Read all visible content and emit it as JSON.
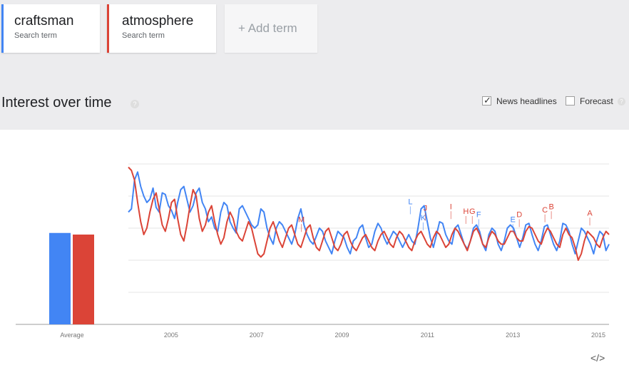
{
  "terms": [
    {
      "name": "craftsman",
      "sub": "Search term",
      "color": "#4285f4"
    },
    {
      "name": "atmosphere",
      "sub": "Search term",
      "color": "#db4437"
    }
  ],
  "add_term": "+ Add term",
  "section_title": "Interest over time",
  "help_glyph": "?",
  "options": {
    "news": {
      "label": "News headlines",
      "checked": true
    },
    "forecast": {
      "label": "Forecast",
      "checked": false
    }
  },
  "embed_glyph": "</>",
  "chart_data": {
    "type": "line",
    "average": {
      "label": "Average",
      "values": [
        57,
        56
      ]
    },
    "x_ticks": [
      "2005",
      "2007",
      "2009",
      "2011",
      "2013",
      "2015"
    ],
    "x_range": [
      2004.0,
      2015.25
    ],
    "ylim": [
      0,
      100
    ],
    "grid": true,
    "series": [
      {
        "name": "craftsman",
        "color": "#4285f4",
        "values": [
          70,
          72,
          90,
          95,
          86,
          80,
          76,
          78,
          85,
          73,
          70,
          82,
          81,
          74,
          71,
          66,
          76,
          84,
          86,
          78,
          70,
          74,
          82,
          85,
          76,
          72,
          64,
          67,
          60,
          58,
          70,
          76,
          74,
          64,
          60,
          57,
          72,
          74,
          70,
          66,
          62,
          60,
          62,
          72,
          70,
          60,
          54,
          50,
          60,
          64,
          62,
          58,
          54,
          50,
          56,
          66,
          72,
          62,
          56,
          52,
          50,
          55,
          60,
          58,
          52,
          48,
          44,
          52,
          58,
          56,
          54,
          48,
          44,
          52,
          54,
          60,
          62,
          54,
          48,
          50,
          58,
          63,
          60,
          54,
          50,
          54,
          58,
          56,
          52,
          48,
          52,
          56,
          52,
          50,
          60,
          72,
          74,
          64,
          54,
          48,
          56,
          64,
          63,
          56,
          52,
          50,
          60,
          62,
          56,
          50,
          47,
          52,
          60,
          62,
          58,
          50,
          46,
          56,
          60,
          58,
          50,
          46,
          52,
          60,
          62,
          60,
          54,
          48,
          54,
          62,
          63,
          56,
          50,
          46,
          52,
          61,
          62,
          56,
          50,
          46,
          52,
          63,
          62,
          58,
          50,
          44,
          52,
          60,
          58,
          54,
          50,
          44,
          52,
          58,
          56,
          46,
          50
        ]
      },
      {
        "name": "atmosphere",
        "color": "#db4437",
        "values": [
          98,
          96,
          90,
          76,
          64,
          56,
          60,
          70,
          78,
          82,
          72,
          62,
          58,
          66,
          76,
          78,
          66,
          56,
          52,
          62,
          74,
          84,
          80,
          66,
          58,
          62,
          70,
          74,
          64,
          56,
          50,
          54,
          64,
          70,
          66,
          58,
          54,
          52,
          58,
          64,
          60,
          52,
          44,
          42,
          44,
          52,
          60,
          64,
          58,
          52,
          48,
          54,
          60,
          62,
          56,
          50,
          48,
          54,
          60,
          62,
          54,
          48,
          46,
          52,
          58,
          60,
          54,
          48,
          46,
          50,
          56,
          58,
          52,
          48,
          46,
          50,
          54,
          56,
          52,
          48,
          46,
          52,
          56,
          58,
          54,
          50,
          48,
          54,
          58,
          56,
          52,
          48,
          46,
          52,
          56,
          58,
          54,
          50,
          48,
          54,
          58,
          56,
          52,
          48,
          50,
          56,
          60,
          58,
          54,
          50,
          46,
          52,
          58,
          60,
          56,
          50,
          48,
          54,
          58,
          56,
          52,
          50,
          50,
          54,
          58,
          58,
          54,
          52,
          52,
          58,
          61,
          60,
          56,
          52,
          50,
          56,
          60,
          58,
          54,
          50,
          48,
          56,
          60,
          56,
          54,
          48,
          40,
          44,
          52,
          58,
          56,
          54,
          50,
          48,
          54,
          58,
          56
        ]
      }
    ],
    "annotations": [
      {
        "letter": "L",
        "x": 2010.6,
        "color": "#4285f4",
        "y": 74
      },
      {
        "letter": "K",
        "x": 2010.9,
        "color": "#4285f4",
        "y": 64
      },
      {
        "letter": "J",
        "x": 2010.95,
        "color": "#db4437",
        "y": 70
      },
      {
        "letter": "I",
        "x": 2011.55,
        "color": "#db4437",
        "y": 71
      },
      {
        "letter": "H",
        "x": 2011.9,
        "color": "#db4437",
        "y": 68
      },
      {
        "letter": "G",
        "x": 2012.05,
        "color": "#db4437",
        "y": 68
      },
      {
        "letter": "F",
        "x": 2012.2,
        "color": "#4285f4",
        "y": 66
      },
      {
        "letter": "M",
        "x": 2008.05,
        "color": "#db4437",
        "y": 63
      },
      {
        "letter": "E",
        "x": 2013.0,
        "color": "#4285f4",
        "y": 63
      },
      {
        "letter": "D",
        "x": 2013.15,
        "color": "#db4437",
        "y": 66
      },
      {
        "letter": "C",
        "x": 2013.75,
        "color": "#db4437",
        "y": 69
      },
      {
        "letter": "B",
        "x": 2013.9,
        "color": "#db4437",
        "y": 71
      },
      {
        "letter": "A",
        "x": 2014.8,
        "color": "#db4437",
        "y": 67
      }
    ]
  }
}
